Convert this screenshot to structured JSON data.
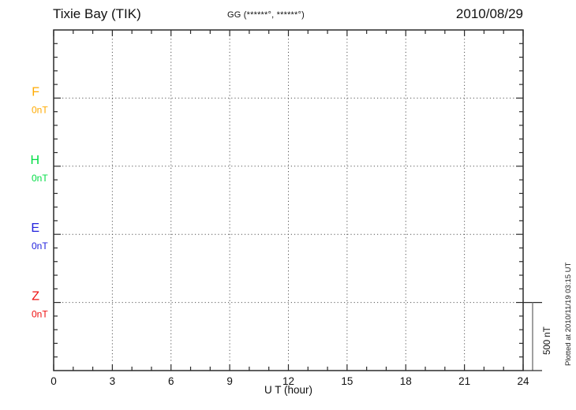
{
  "header": {
    "station_title": "Tixie Bay (TIK)",
    "coordinates_label": "GG (******°, ******°)",
    "date": "2010/08/29"
  },
  "footer": {
    "xlabel": "U T (hour)",
    "plotted_at": "Plotted at 2010/11/19 03:15 UT"
  },
  "scale_bar": {
    "label": "500 nT",
    "value_nt": 500
  },
  "chart_data": {
    "type": "line",
    "title": "Tixie Bay (TIK) magnetogram 2010/08/29",
    "xlabel": "U T (hour)",
    "x_range_hours": [
      0,
      24
    ],
    "x_major_ticks": [
      0,
      3,
      6,
      9,
      12,
      15,
      18,
      21,
      24
    ],
    "x_minor_step_hours": 1,
    "grid": "dotted",
    "y_divisions_per_panel": 5,
    "panels_total": 5,
    "scale_bar_nt": 500,
    "series": [
      {
        "name": "F",
        "baseline_label": "0nT",
        "baseline_value_nt": 0,
        "color": "#FFAA00",
        "values": []
      },
      {
        "name": "H",
        "baseline_label": "0nT",
        "baseline_value_nt": 0,
        "color": "#00DD44",
        "values": []
      },
      {
        "name": "E",
        "baseline_label": "0nT",
        "baseline_value_nt": 0,
        "color": "#2222DD",
        "values": []
      },
      {
        "name": "Z",
        "baseline_label": "0nT",
        "baseline_value_nt": 0,
        "color": "#EE1111",
        "values": []
      }
    ]
  }
}
